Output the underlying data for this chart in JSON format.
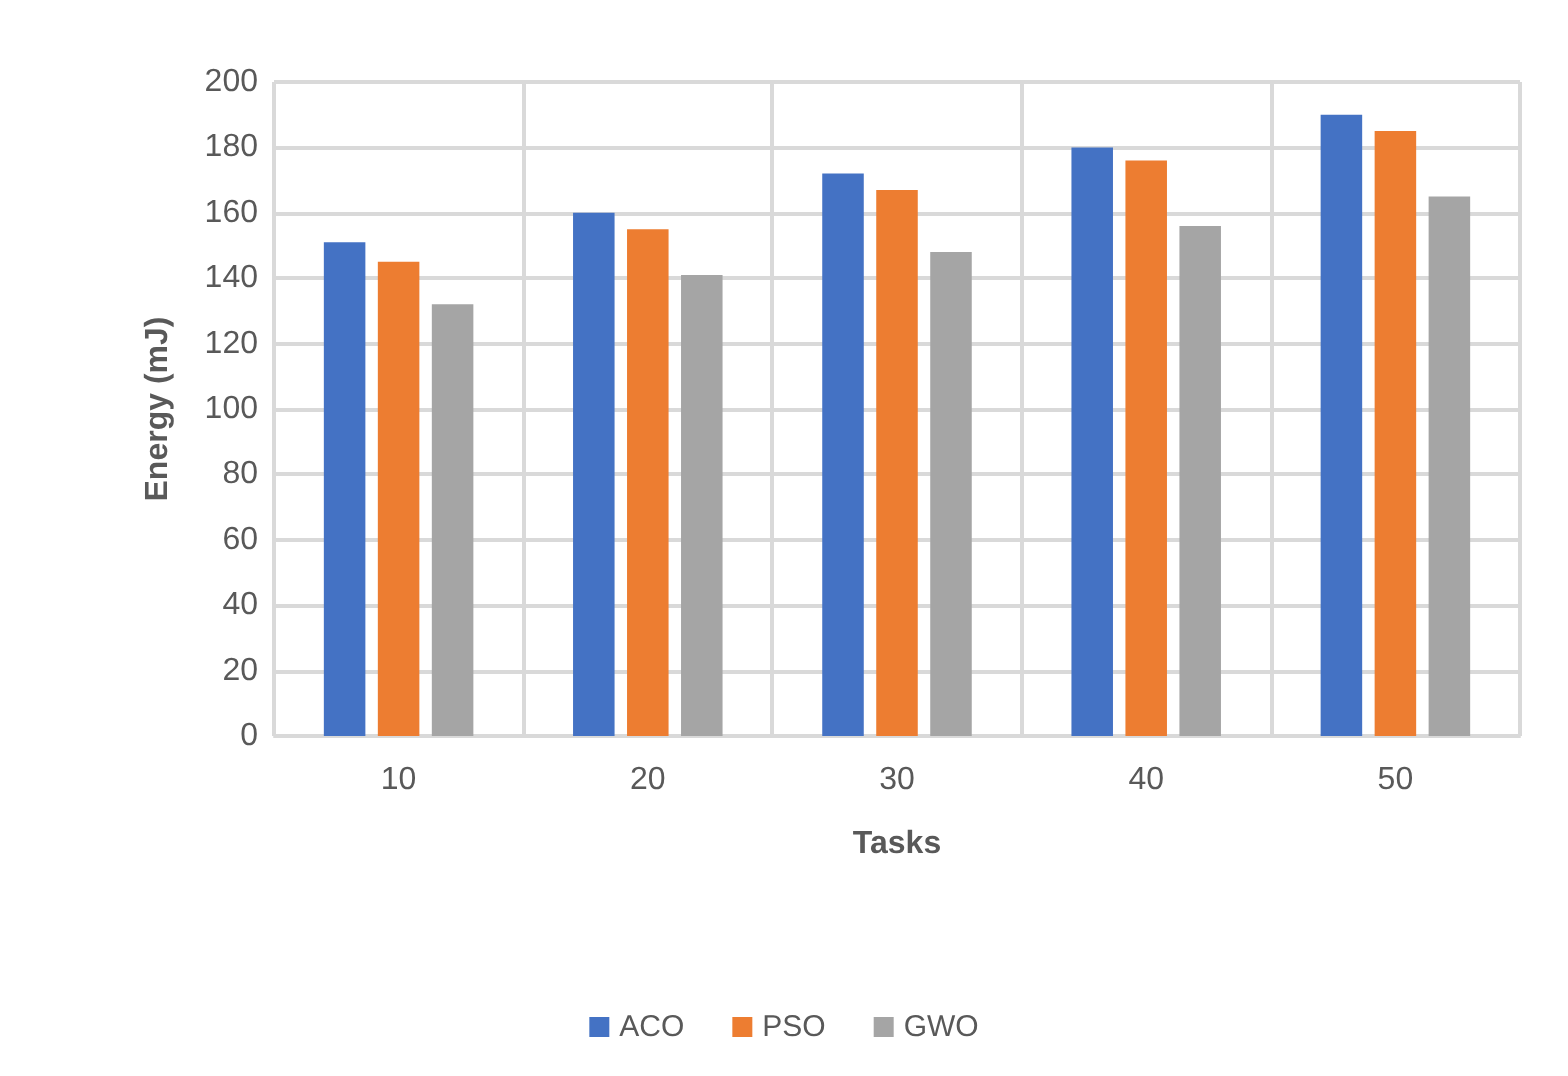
{
  "chart_data": {
    "type": "bar",
    "xlabel": "Tasks",
    "ylabel": "Energy (mJ)",
    "categories": [
      "10",
      "20",
      "30",
      "40",
      "50"
    ],
    "series": [
      {
        "name": "ACO",
        "color": "#4472c4",
        "values": [
          151,
          160,
          172,
          180,
          190
        ]
      },
      {
        "name": "PSO",
        "color": "#ed7d31",
        "values": [
          145,
          155,
          167,
          176,
          185
        ]
      },
      {
        "name": "GWO",
        "color": "#a5a5a5",
        "values": [
          132,
          141,
          148,
          156,
          165
        ]
      }
    ],
    "ylim": [
      0,
      200
    ],
    "yticks": [
      0,
      20,
      40,
      60,
      80,
      100,
      120,
      140,
      160,
      180,
      200
    ],
    "grid": true,
    "legend": "bottom"
  }
}
